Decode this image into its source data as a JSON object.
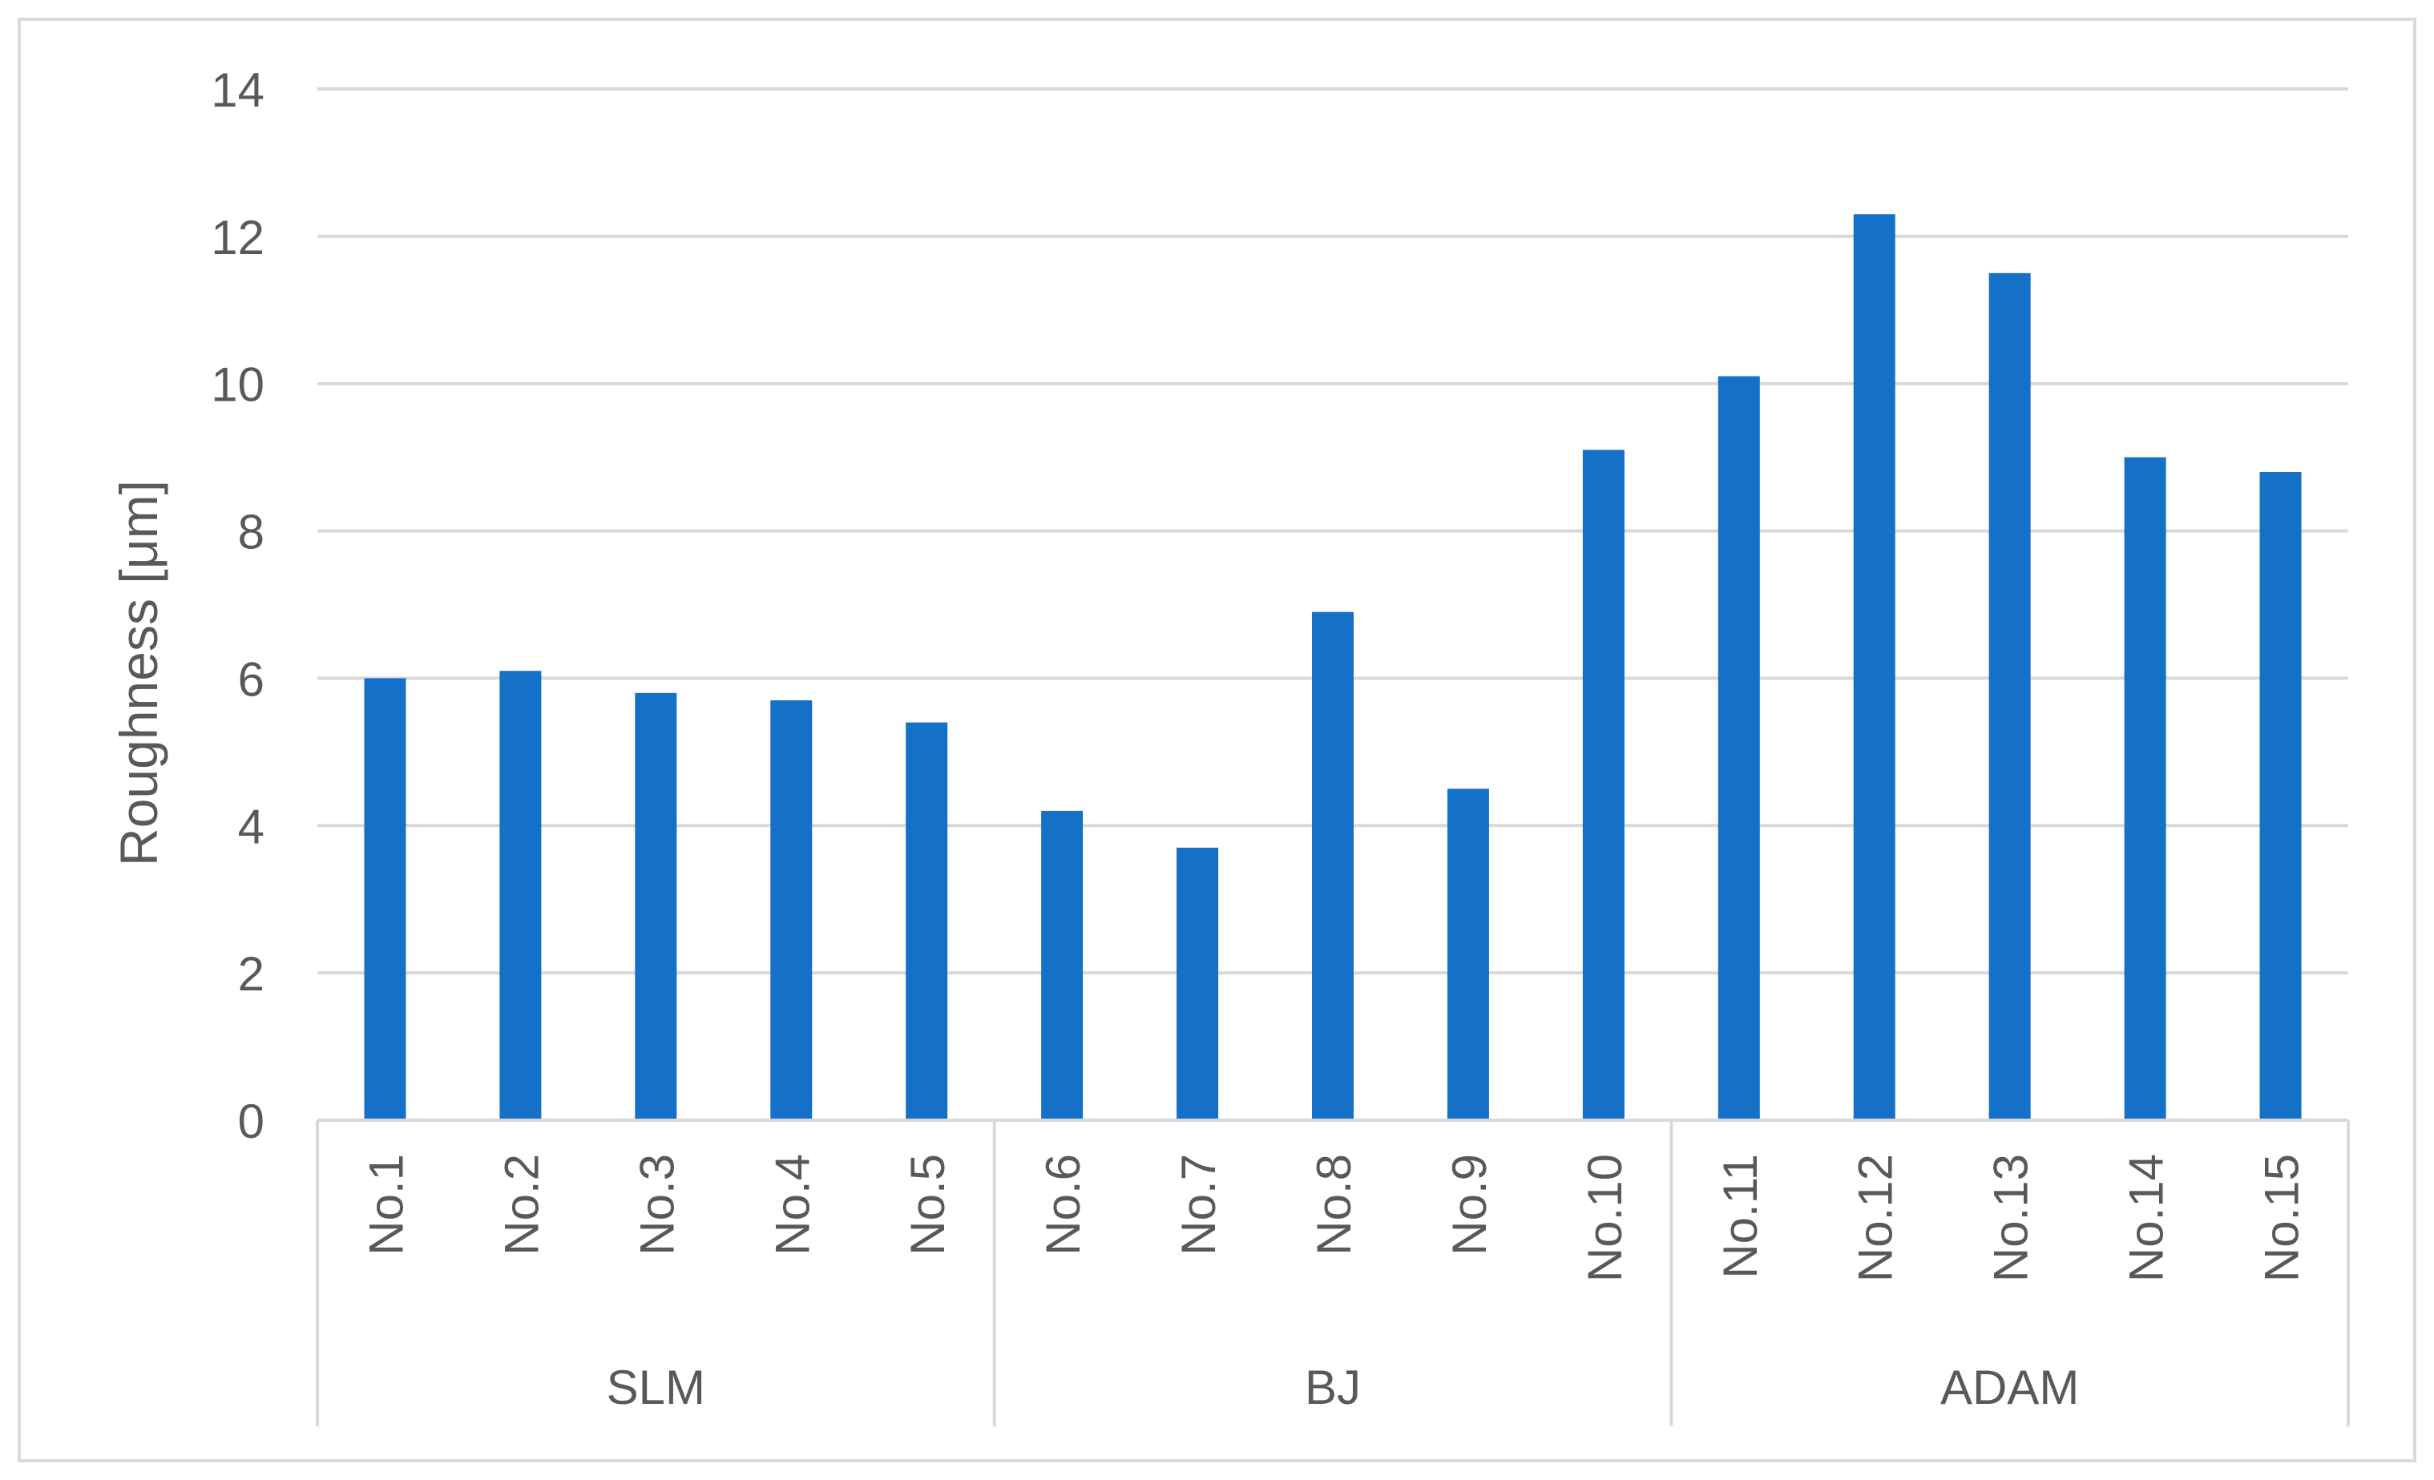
{
  "chart_data": {
    "type": "bar",
    "ylabel": "Roughness [μm]",
    "ylim": [
      0,
      14
    ],
    "yticks": [
      0,
      2,
      4,
      6,
      8,
      10,
      12,
      14
    ],
    "grid": true,
    "legend": "none",
    "colors": {
      "bar": "#1570C8",
      "grid": "#d9d9d9",
      "text": "#595959"
    },
    "categories": [
      "No.1",
      "No.2",
      "No.3",
      "No.4",
      "No.5",
      "No.6",
      "No.7",
      "No.8",
      "No.9",
      "No.10",
      "No.11",
      "No.12",
      "No.13",
      "No.14",
      "No.15"
    ],
    "values": [
      6.0,
      6.1,
      5.8,
      5.7,
      5.4,
      4.2,
      3.7,
      6.9,
      4.5,
      9.1,
      10.1,
      12.3,
      11.5,
      9.0,
      8.8
    ],
    "groups": [
      {
        "name": "SLM",
        "count": 5
      },
      {
        "name": "BJ",
        "count": 5
      },
      {
        "name": "ADAM",
        "count": 5
      }
    ]
  }
}
